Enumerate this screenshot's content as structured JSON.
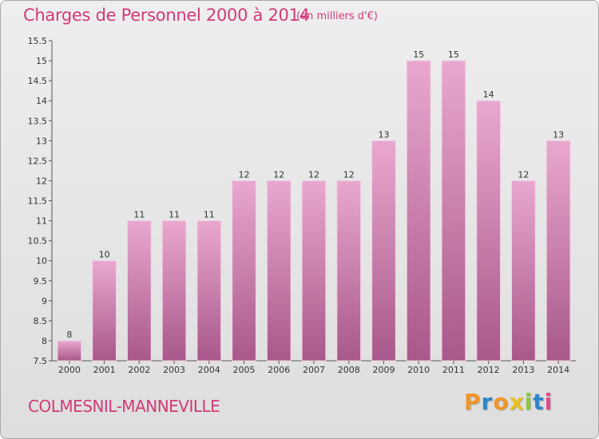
{
  "header": {
    "title": "Charges de Personnel 2000 à 2014",
    "subtitle": "(en milliers d'€)"
  },
  "footer": {
    "commune": "COLMESNIL-MANNEVILLE",
    "logo_letters": [
      "P",
      "r",
      "o",
      "x",
      "i",
      "t",
      "i"
    ]
  },
  "colors": {
    "title": "#d23a7a",
    "bar_top": "#e9a8cf",
    "bar_bottom": "#a8588a",
    "logo": [
      "#f0962a",
      "#2e86c8",
      "#f0962a",
      "#e8c21c",
      "#8cc63e",
      "#2e86c8",
      "#e24a8a"
    ]
  },
  "chart_data": {
    "type": "bar",
    "title": "Charges de Personnel 2000 à 2014",
    "subtitle": "(en milliers d'€)",
    "categories": [
      "2000",
      "2001",
      "2002",
      "2003",
      "2004",
      "2005",
      "2006",
      "2007",
      "2008",
      "2009",
      "2010",
      "2011",
      "2012",
      "2013",
      "2014"
    ],
    "values": [
      8,
      10,
      11,
      11,
      11,
      12,
      12,
      12,
      12,
      13,
      15,
      15,
      14,
      12,
      13
    ],
    "value_labels": [
      "8",
      "10",
      "11",
      "11",
      "11",
      "12",
      "12",
      "12",
      "12",
      "13",
      "15",
      "15",
      "14",
      "12",
      "13"
    ],
    "ylim": [
      7.5,
      15.5
    ],
    "yticks": [
      7.5,
      8,
      8.5,
      9,
      9.5,
      10,
      10.5,
      11,
      11.5,
      12,
      12.5,
      13,
      13.5,
      14,
      14.5,
      15,
      15.5
    ],
    "ytick_labels": [
      "7.5",
      "8",
      "8.5",
      "9",
      "9.5",
      "10",
      "10.5",
      "11",
      "11.5",
      "12",
      "12.5",
      "13",
      "13.5",
      "14",
      "14.5",
      "15",
      "15.5"
    ],
    "grid": false,
    "legend": "none"
  }
}
